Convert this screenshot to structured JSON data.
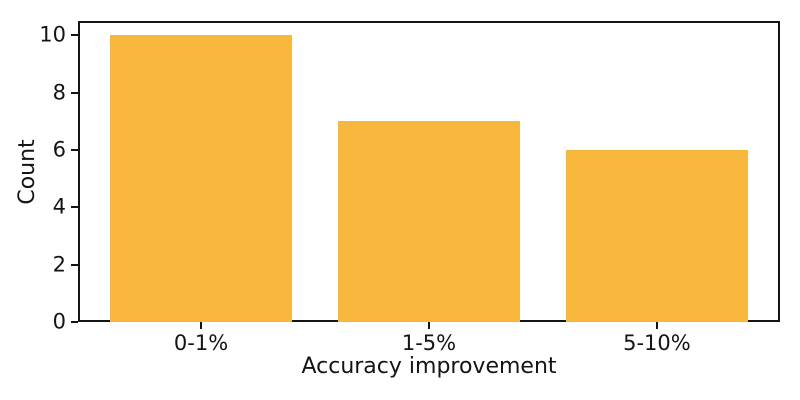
{
  "chart_data": {
    "type": "bar",
    "title": "",
    "xlabel": "Accuracy improvement",
    "ylabel": "Count",
    "categories": [
      "0-1%",
      "1-5%",
      "5-10%"
    ],
    "values": [
      10,
      7,
      6
    ],
    "yticks": [
      0,
      2,
      4,
      6,
      8,
      10
    ],
    "ylim": [
      0,
      10.5
    ],
    "bar_width_fraction": 0.8,
    "grid": false,
    "legend": "none",
    "colors": {
      "bar": "#F8B73D",
      "axis": "#141414",
      "text": "#141414",
      "background": "#FFFFFF"
    }
  }
}
